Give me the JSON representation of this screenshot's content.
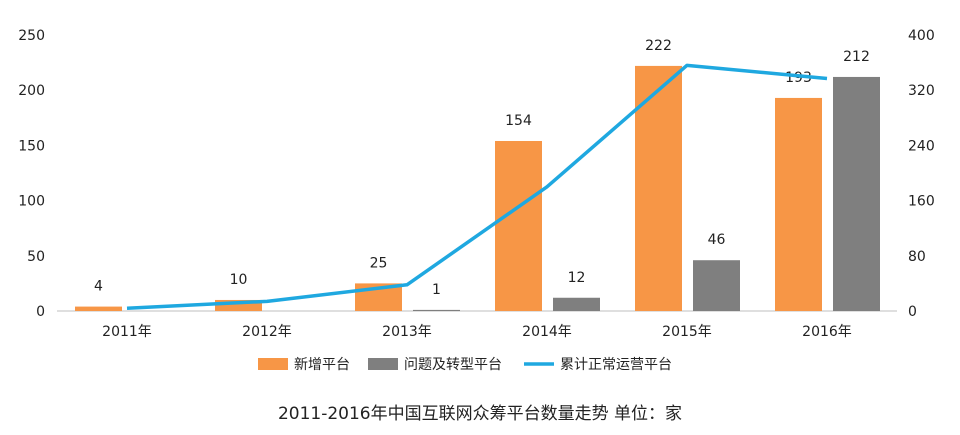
{
  "chart_data": {
    "type": "bar",
    "title": "2011-2016年中国互联网众筹平台数量走势 单位：家",
    "categories": [
      "2011年",
      "2012年",
      "2013年",
      "2014年",
      "2015年",
      "2016年"
    ],
    "series": [
      {
        "name": "新增平台",
        "type": "bar",
        "axis": "left",
        "color": "#F79646",
        "values": [
          4,
          10,
          25,
          154,
          222,
          193
        ],
        "labels": [
          "4",
          "10",
          "25",
          "154",
          "222",
          "193"
        ]
      },
      {
        "name": "问题及转型平台",
        "type": "bar",
        "axis": "left",
        "color": "#7F7F7F",
        "values": [
          0,
          0,
          1,
          12,
          46,
          212
        ],
        "labels": [
          "",
          "",
          "1",
          "12",
          "46",
          "212"
        ]
      },
      {
        "name": "累计正常运营平台",
        "type": "line",
        "axis": "right",
        "color": "#1FA8E0",
        "values": [
          4,
          14,
          38,
          180,
          356,
          337
        ]
      }
    ],
    "y_left": {
      "ylim": [
        0,
        250
      ],
      "ticks": [
        "0",
        "50",
        "100",
        "150",
        "200",
        "250"
      ]
    },
    "y_right": {
      "ylim": [
        0,
        400
      ],
      "ticks": [
        "0",
        "80",
        "160",
        "240",
        "320",
        "400"
      ]
    },
    "legend": "bottom",
    "grid": false
  }
}
